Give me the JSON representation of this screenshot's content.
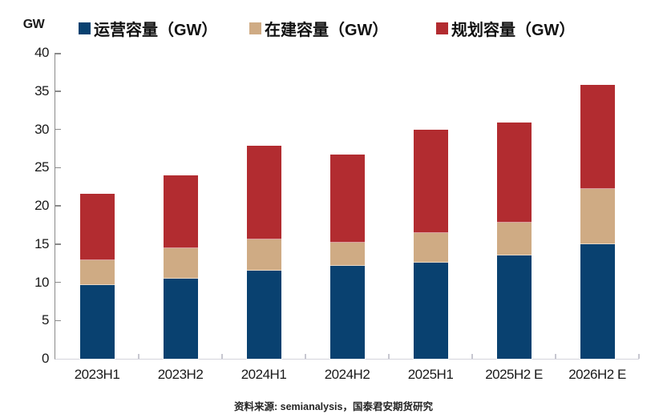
{
  "unit_label": "GW",
  "footer": "资料来源: semianalysis，国泰君安期货研究",
  "legend": [
    {
      "label": "运营容量（GW）",
      "color": "#094170"
    },
    {
      "label": "在建容量（GW）",
      "color": "#cfab84"
    },
    {
      "label": "规划容量（GW）",
      "color": "#b22c30"
    }
  ],
  "chart_data": {
    "type": "bar",
    "stacked": true,
    "title": "",
    "xlabel": "",
    "ylabel": "GW",
    "ylim": [
      0,
      40
    ],
    "yticks": [
      0,
      5,
      10,
      15,
      20,
      25,
      30,
      35,
      40
    ],
    "grid": false,
    "legend_position": "top",
    "categories": [
      "2023H1",
      "2023H2",
      "2024H1",
      "2024H2",
      "2025H1",
      "2025H2 E",
      "2026H2 E"
    ],
    "series": [
      {
        "name": "运营容量（GW）",
        "color": "#094170",
        "values": [
          9.6,
          10.5,
          11.5,
          12.2,
          12.6,
          13.5,
          15.0
        ]
      },
      {
        "name": "在建容量（GW）",
        "color": "#cfab84",
        "values": [
          3.3,
          4.0,
          4.1,
          3.0,
          3.8,
          4.3,
          7.2
        ]
      },
      {
        "name": "规划容量（GW）",
        "color": "#b22c30",
        "values": [
          8.7,
          9.5,
          12.3,
          11.5,
          13.6,
          13.1,
          13.6
        ]
      }
    ],
    "totals": [
      21.6,
      24.0,
      27.9,
      26.7,
      30.0,
      30.9,
      35.8
    ]
  }
}
